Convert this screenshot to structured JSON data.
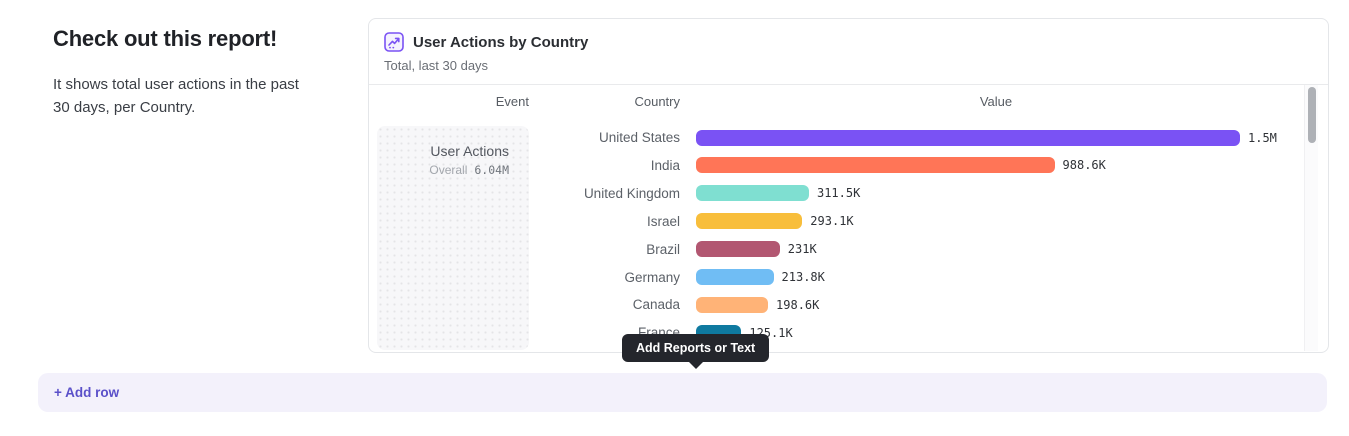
{
  "page": {
    "heading": "Check out this report!",
    "description": "It shows total user actions in the past 30 days, per Country."
  },
  "card": {
    "icon": "line-chart-icon",
    "title": "User Actions by Country",
    "subtitle": "Total, last 30 days",
    "accent_color": "#7a52f4"
  },
  "chart_data": {
    "type": "bar",
    "orientation": "horizontal",
    "title": "User Actions by Country",
    "subtitle": "Total, last 30 days",
    "columns": [
      "Event",
      "Country",
      "Value"
    ],
    "event": {
      "name": "User Actions",
      "overall_label": "Overall",
      "overall_value": "6.04M"
    },
    "categories": [
      "United States",
      "India",
      "United Kingdom",
      "Israel",
      "Brazil",
      "Germany",
      "Canada",
      "France"
    ],
    "values": [
      1500000,
      988600,
      311500,
      293100,
      231000,
      213800,
      198600,
      125100
    ],
    "value_labels": [
      "1.5M",
      "988.6K",
      "311.5K",
      "293.1K",
      "231K",
      "213.8K",
      "198.6K",
      "125.1K"
    ],
    "bar_colors": [
      "#7a52f4",
      "#ff7557",
      "#7fdfd1",
      "#f8be3b",
      "#b25771",
      "#70bdf4",
      "#ffb377",
      "#0f7aa0"
    ],
    "xlim": [
      0,
      1500000
    ],
    "grid": false,
    "legend": "none"
  },
  "tooltip": {
    "label": "Add Reports or Text",
    "bg_color": "#24262c"
  },
  "add_row": {
    "label": "+ Add row",
    "text_color": "#5a50c9",
    "bg_color": "#f3f1fb"
  },
  "scrollbar": {
    "visible": true
  }
}
